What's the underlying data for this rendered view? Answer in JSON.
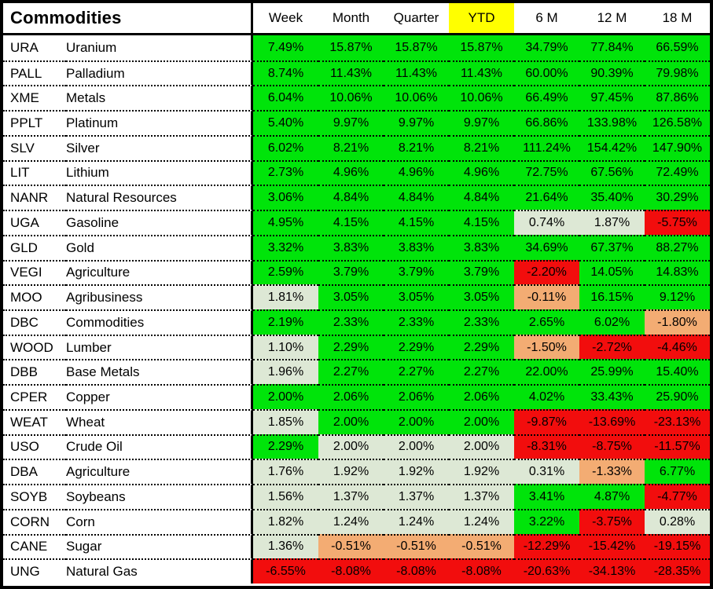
{
  "chart_data": {
    "type": "heatmap",
    "title": "Commodities",
    "columns": [
      "Week",
      "Month",
      "Quarter",
      "YTD",
      "6 M",
      "12 M",
      "18 M"
    ],
    "highlighted_column": "YTD",
    "highlighted_column_index": 3,
    "value_format": "percent, 2 decimals",
    "legend": "cell background encodes performance: green = strong positive, sage = flat/small positive, orange = small negative, red = negative",
    "rows": [
      {
        "ticker": "URA",
        "name": "Uranium",
        "values": [
          7.49,
          15.87,
          15.87,
          15.87,
          34.79,
          77.84,
          66.59
        ],
        "tones": [
          "green",
          "green",
          "green",
          "green",
          "green",
          "green",
          "green"
        ]
      },
      {
        "ticker": "PALL",
        "name": "Palladium",
        "values": [
          8.74,
          11.43,
          11.43,
          11.43,
          60.0,
          90.39,
          79.98
        ],
        "tones": [
          "green",
          "green",
          "green",
          "green",
          "green",
          "green",
          "green"
        ]
      },
      {
        "ticker": "XME",
        "name": "Metals",
        "values": [
          6.04,
          10.06,
          10.06,
          10.06,
          66.49,
          97.45,
          87.86
        ],
        "tones": [
          "green",
          "green",
          "green",
          "green",
          "green",
          "green",
          "green"
        ]
      },
      {
        "ticker": "PPLT",
        "name": "Platinum",
        "values": [
          5.4,
          9.97,
          9.97,
          9.97,
          66.86,
          133.98,
          126.58
        ],
        "tones": [
          "green",
          "green",
          "green",
          "green",
          "green",
          "green",
          "green"
        ]
      },
      {
        "ticker": "SLV",
        "name": "Silver",
        "values": [
          6.02,
          8.21,
          8.21,
          8.21,
          111.24,
          154.42,
          147.9
        ],
        "tones": [
          "green",
          "green",
          "green",
          "green",
          "green",
          "green",
          "green"
        ]
      },
      {
        "ticker": "LIT",
        "name": "Lithium",
        "values": [
          2.73,
          4.96,
          4.96,
          4.96,
          72.75,
          67.56,
          72.49
        ],
        "tones": [
          "green",
          "green",
          "green",
          "green",
          "green",
          "green",
          "green"
        ]
      },
      {
        "ticker": "NANR",
        "name": "Natural Resources",
        "values": [
          3.06,
          4.84,
          4.84,
          4.84,
          21.64,
          35.4,
          30.29
        ],
        "tones": [
          "green",
          "green",
          "green",
          "green",
          "green",
          "green",
          "green"
        ]
      },
      {
        "ticker": "UGA",
        "name": "Gasoline",
        "values": [
          4.95,
          4.15,
          4.15,
          4.15,
          0.74,
          1.87,
          -5.75
        ],
        "tones": [
          "green",
          "green",
          "green",
          "green",
          "sage",
          "sage",
          "red"
        ]
      },
      {
        "ticker": "GLD",
        "name": "Gold",
        "values": [
          3.32,
          3.83,
          3.83,
          3.83,
          34.69,
          67.37,
          88.27
        ],
        "tones": [
          "green",
          "green",
          "green",
          "green",
          "green",
          "green",
          "green"
        ]
      },
      {
        "ticker": "VEGI",
        "name": "Agriculture",
        "values": [
          2.59,
          3.79,
          3.79,
          3.79,
          -2.2,
          14.05,
          14.83
        ],
        "tones": [
          "green",
          "green",
          "green",
          "green",
          "red",
          "green",
          "green"
        ]
      },
      {
        "ticker": "MOO",
        "name": "Agribusiness",
        "values": [
          1.81,
          3.05,
          3.05,
          3.05,
          -0.11,
          16.15,
          9.12
        ],
        "tones": [
          "sage",
          "green",
          "green",
          "green",
          "orange",
          "green",
          "green"
        ]
      },
      {
        "ticker": "DBC",
        "name": "Commodities",
        "values": [
          2.19,
          2.33,
          2.33,
          2.33,
          2.65,
          6.02,
          -1.8
        ],
        "tones": [
          "green",
          "green",
          "green",
          "green",
          "green",
          "green",
          "orange"
        ]
      },
      {
        "ticker": "WOOD",
        "name": "Lumber",
        "values": [
          1.1,
          2.29,
          2.29,
          2.29,
          -1.5,
          -2.72,
          -4.46
        ],
        "tones": [
          "sage",
          "green",
          "green",
          "green",
          "orange",
          "red",
          "red"
        ]
      },
      {
        "ticker": "DBB",
        "name": "Base Metals",
        "values": [
          1.96,
          2.27,
          2.27,
          2.27,
          22.0,
          25.99,
          15.4
        ],
        "tones": [
          "sage",
          "green",
          "green",
          "green",
          "green",
          "green",
          "green"
        ]
      },
      {
        "ticker": "CPER",
        "name": "Copper",
        "values": [
          2.0,
          2.06,
          2.06,
          2.06,
          4.02,
          33.43,
          25.9
        ],
        "tones": [
          "green",
          "green",
          "green",
          "green",
          "green",
          "green",
          "green"
        ]
      },
      {
        "ticker": "WEAT",
        "name": "Wheat",
        "values": [
          1.85,
          2.0,
          2.0,
          2.0,
          -9.87,
          -13.69,
          -23.13
        ],
        "tones": [
          "sage",
          "green",
          "green",
          "green",
          "red",
          "red",
          "red"
        ]
      },
      {
        "ticker": "USO",
        "name": "Crude Oil",
        "values": [
          2.29,
          2.0,
          2.0,
          2.0,
          -8.31,
          -8.75,
          -11.57
        ],
        "tones": [
          "green",
          "sage",
          "sage",
          "sage",
          "red",
          "red",
          "red"
        ]
      },
      {
        "ticker": "DBA",
        "name": "Agriculture",
        "values": [
          1.76,
          1.92,
          1.92,
          1.92,
          0.31,
          -1.33,
          6.77
        ],
        "tones": [
          "sage",
          "sage",
          "sage",
          "sage",
          "sage",
          "orange",
          "green"
        ]
      },
      {
        "ticker": "SOYB",
        "name": "Soybeans",
        "values": [
          1.56,
          1.37,
          1.37,
          1.37,
          3.41,
          4.87,
          -4.77
        ],
        "tones": [
          "sage",
          "sage",
          "sage",
          "sage",
          "green",
          "green",
          "red"
        ]
      },
      {
        "ticker": "CORN",
        "name": "Corn",
        "values": [
          1.82,
          1.24,
          1.24,
          1.24,
          3.22,
          -3.75,
          0.28
        ],
        "tones": [
          "sage",
          "sage",
          "sage",
          "sage",
          "green",
          "red",
          "sage"
        ]
      },
      {
        "ticker": "CANE",
        "name": "Sugar",
        "values": [
          1.36,
          -0.51,
          -0.51,
          -0.51,
          -12.29,
          -15.42,
          -19.15
        ],
        "tones": [
          "sage",
          "orange",
          "orange",
          "orange",
          "red",
          "red",
          "red"
        ]
      },
      {
        "ticker": "UNG",
        "name": "Natural Gas",
        "values": [
          -6.55,
          -8.08,
          -8.08,
          -8.08,
          -20.63,
          -34.13,
          -28.35
        ],
        "tones": [
          "red",
          "red",
          "red",
          "red",
          "red",
          "red",
          "red"
        ]
      }
    ],
    "colors": {
      "green": "#00E40A",
      "sage": "#DDE8D5",
      "orange": "#F3AC73",
      "red": "#F20D0D",
      "yellow": "#FFFF00",
      "text": "#000000",
      "border": "#000000"
    }
  }
}
